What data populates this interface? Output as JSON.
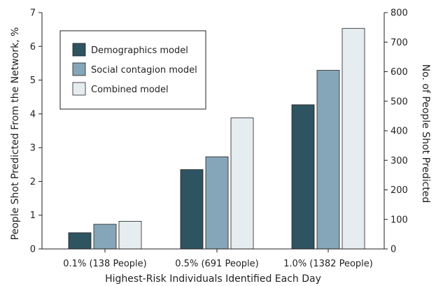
{
  "chart_data": {
    "type": "bar",
    "categories": [
      "0.1% (138 People)",
      "0.5% (691 People)",
      "1.0% (1382 People)"
    ],
    "series": [
      {
        "name": "Demographics model",
        "color": "#2e5361",
        "values": [
          0.48,
          2.35,
          4.27
        ]
      },
      {
        "name": "Social contagion model",
        "color": "#85a6b8",
        "values": [
          0.73,
          2.73,
          5.29
        ]
      },
      {
        "name": "Combined model",
        "color": "#e5edf1",
        "values": [
          0.82,
          3.88,
          6.53
        ]
      }
    ],
    "xlabel": "Highest-Risk Individuals Identified Each Day",
    "ylabel": "People Shot Predicted From the Network, %",
    "y2label": "No. of People Shot Predicted",
    "ylim": [
      0,
      7
    ],
    "y_ticks": [
      0,
      1,
      2,
      3,
      4,
      5,
      6,
      7
    ],
    "y2lim": [
      0,
      800
    ],
    "y2_ticks": [
      0,
      100,
      200,
      300,
      400,
      500,
      600,
      700,
      800
    ],
    "legend_position": "top-left",
    "grid": false
  }
}
